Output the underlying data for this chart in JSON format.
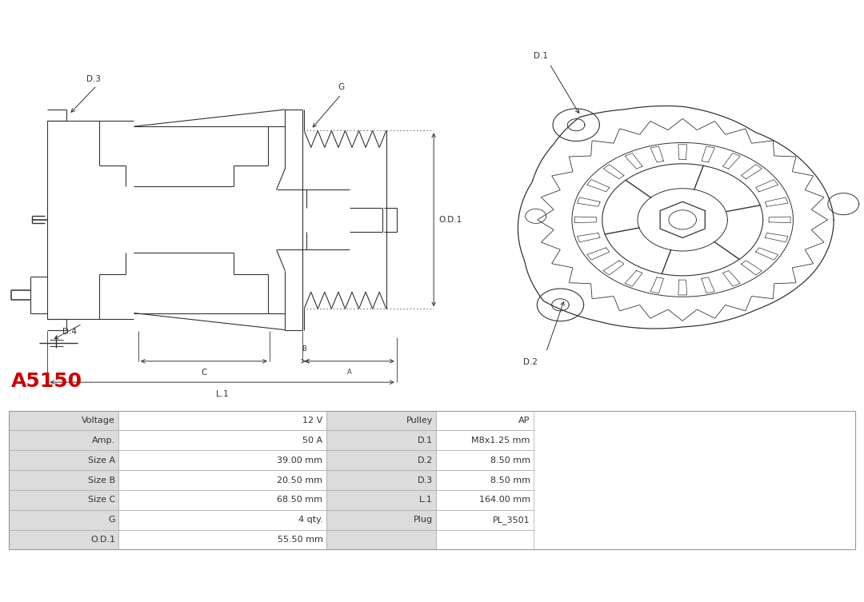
{
  "title": "A5150",
  "title_color": "#cc0000",
  "bg_color": "#ffffff",
  "table_rows": [
    [
      "Voltage",
      "12 V",
      "Pulley",
      "AP"
    ],
    [
      "Amp.",
      "50 A",
      "D.1",
      "M8x1.25 mm"
    ],
    [
      "Size A",
      "39.00 mm",
      "D.2",
      "8.50 mm"
    ],
    [
      "Size B",
      "20.50 mm",
      "D.3",
      "8.50 mm"
    ],
    [
      "Size C",
      "68.50 mm",
      "L.1",
      "164.00 mm"
    ],
    [
      "G",
      "4 qty.",
      "Plug",
      "PL_3501"
    ],
    [
      "O.D.1",
      "55.50 mm",
      "",
      ""
    ]
  ],
  "line_color": "#333333",
  "cell_bg": "#dcdcdc",
  "cell_white": "#ffffff"
}
